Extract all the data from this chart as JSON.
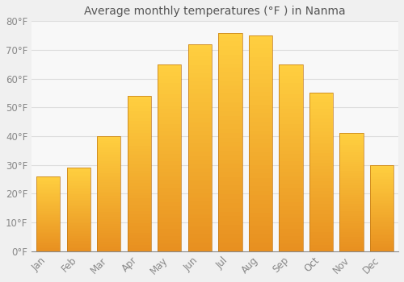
{
  "title": "Average monthly temperatures (°F ) in Nanma",
  "months": [
    "Jan",
    "Feb",
    "Mar",
    "Apr",
    "May",
    "Jun",
    "Jul",
    "Aug",
    "Sep",
    "Oct",
    "Nov",
    "Dec"
  ],
  "values": [
    26,
    29,
    40,
    54,
    65,
    72,
    76,
    75,
    65,
    55,
    41,
    30
  ],
  "bar_color_top": "#FFD040",
  "bar_color_bottom": "#E89020",
  "bar_edge_color": "#C07818",
  "background_color": "#F0F0F0",
  "plot_bg_color": "#F8F8F8",
  "grid_color": "#DDDDDD",
  "text_color": "#888888",
  "title_color": "#555555",
  "ylim": [
    0,
    80
  ],
  "yticks": [
    0,
    10,
    20,
    30,
    40,
    50,
    60,
    70,
    80
  ],
  "title_fontsize": 10,
  "tick_fontsize": 8.5
}
